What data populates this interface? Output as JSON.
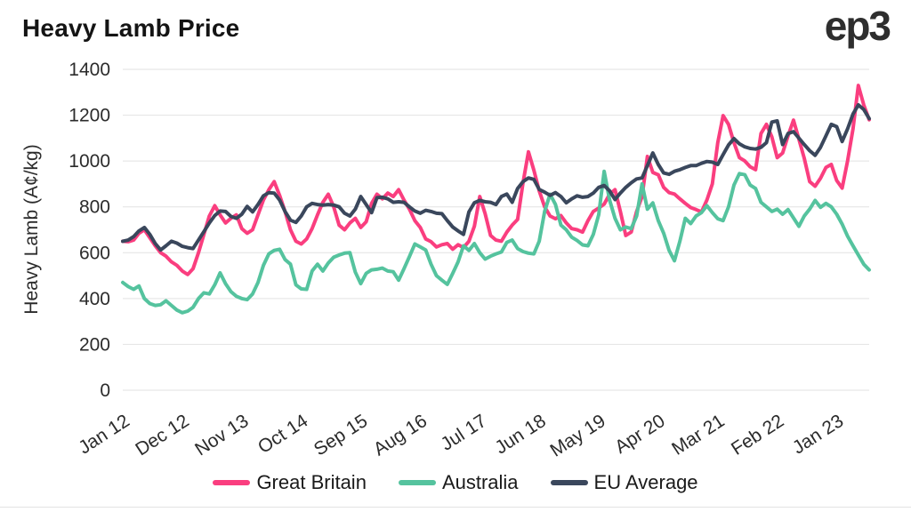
{
  "header": {
    "title": "Heavy Lamb Price",
    "logo": "ep3"
  },
  "chart_data": {
    "type": "line",
    "title": "Heavy Lamb Price",
    "xlabel": "",
    "ylabel": "Heavy Lamb (A¢/kg)",
    "ylim": [
      0,
      1400
    ],
    "yticks": [
      0,
      200,
      400,
      600,
      800,
      1000,
      1200,
      1400
    ],
    "grid": "horizontal",
    "grid_color": "#E2E2E2",
    "text_color": "#2b2b2b",
    "legend_position": "bottom",
    "x_unit": "months since Jan 2012, monthly data Jan 2012 - Jul 2023",
    "x_range": [
      0,
      138
    ],
    "x_tick_positions": [
      0,
      11,
      22,
      33,
      44,
      55,
      66,
      77,
      88,
      99,
      110,
      121,
      132
    ],
    "x_tick_labels": [
      "Jan 12",
      "Dec 12",
      "Nov 13",
      "Oct 14",
      "Sep 15",
      "Aug 16",
      "Jul 17",
      "Jun 18",
      "May 19",
      "Apr 20",
      "Mar 21",
      "Feb 22",
      "Jan 23"
    ],
    "series": [
      {
        "name": "Great Britain",
        "color": "#FA3E7F",
        "values": [
          650,
          648,
          655,
          685,
          700,
          665,
          630,
          600,
          585,
          560,
          545,
          520,
          505,
          530,
          600,
          680,
          760,
          805,
          765,
          730,
          750,
          765,
          705,
          685,
          700,
          765,
          830,
          875,
          910,
          850,
          780,
          700,
          650,
          638,
          660,
          705,
          765,
          820,
          855,
          800,
          720,
          700,
          730,
          750,
          710,
          735,
          815,
          855,
          835,
          860,
          845,
          875,
          830,
          790,
          740,
          710,
          660,
          648,
          625,
          635,
          640,
          615,
          635,
          622,
          650,
          715,
          845,
          770,
          675,
          655,
          650,
          690,
          720,
          745,
          905,
          1040,
          960,
          870,
          800,
          760,
          748,
          762,
          730,
          705,
          700,
          690,
          740,
          780,
          795,
          812,
          855,
          875,
          780,
          675,
          690,
          780,
          845,
          1020,
          950,
          940,
          885,
          862,
          856,
          835,
          815,
          797,
          788,
          778,
          830,
          900,
          1080,
          1198,
          1160,
          1080,
          1015,
          1000,
          975,
          962,
          1120,
          1160,
          1105,
          1015,
          1035,
          1110,
          1178,
          1095,
          1012,
          910,
          890,
          925,
          972,
          985,
          915,
          882,
          1000,
          1140,
          1330,
          1245,
          1180
        ]
      },
      {
        "name": "Australia",
        "color": "#55C39E",
        "values": [
          470,
          452,
          440,
          455,
          400,
          378,
          370,
          373,
          390,
          370,
          350,
          338,
          345,
          362,
          400,
          425,
          420,
          460,
          512,
          465,
          430,
          410,
          400,
          395,
          420,
          470,
          545,
          595,
          610,
          615,
          570,
          550,
          460,
          442,
          440,
          520,
          550,
          520,
          555,
          580,
          590,
          598,
          600,
          515,
          465,
          510,
          525,
          528,
          533,
          520,
          517,
          480,
          530,
          583,
          638,
          625,
          612,
          550,
          500,
          480,
          462,
          510,
          560,
          630,
          610,
          640,
          600,
          572,
          585,
          595,
          603,
          645,
          655,
          618,
          605,
          598,
          595,
          650,
          780,
          855,
          810,
          720,
          700,
          668,
          653,
          634,
          630,
          680,
          766,
          955,
          830,
          750,
          700,
          712,
          705,
          760,
          900,
          790,
          817,
          740,
          685,
          610,
          565,
          650,
          750,
          727,
          760,
          775,
          805,
          775,
          748,
          740,
          800,
          895,
          945,
          940,
          895,
          880,
          820,
          800,
          780,
          790,
          768,
          788,
          752,
          715,
          760,
          790,
          828,
          798,
          815,
          800,
          768,
          725,
          672,
          630,
          590,
          550,
          525
        ]
      },
      {
        "name": "EU Average",
        "color": "#3A475C",
        "values": [
          650,
          655,
          670,
          695,
          710,
          680,
          640,
          612,
          630,
          650,
          642,
          628,
          622,
          618,
          655,
          692,
          730,
          762,
          782,
          780,
          758,
          750,
          768,
          802,
          778,
          810,
          848,
          862,
          860,
          830,
          780,
          742,
          732,
          760,
          800,
          815,
          810,
          808,
          810,
          808,
          800,
          772,
          760,
          790,
          845,
          810,
          775,
          840,
          842,
          835,
          820,
          822,
          820,
          800,
          782,
          772,
          785,
          780,
          772,
          770,
          740,
          712,
          695,
          680,
          778,
          818,
          828,
          822,
          820,
          810,
          845,
          856,
          820,
          880,
          910,
          926,
          920,
          876,
          864,
          850,
          862,
          845,
          818,
          835,
          848,
          842,
          845,
          860,
          885,
          893,
          870,
          832,
          860,
          885,
          905,
          922,
          926,
          980,
          1035,
          985,
          948,
          942,
          955,
          962,
          972,
          980,
          980,
          990,
          998,
          995,
          985,
          1028,
          1070,
          1098,
          1075,
          1062,
          1055,
          1052,
          1060,
          1080,
          1170,
          1175,
          1072,
          1120,
          1128,
          1100,
          1072,
          1045,
          1025,
          1060,
          1110,
          1160,
          1150,
          1085,
          1140,
          1205,
          1245,
          1225,
          1185
        ]
      }
    ]
  }
}
